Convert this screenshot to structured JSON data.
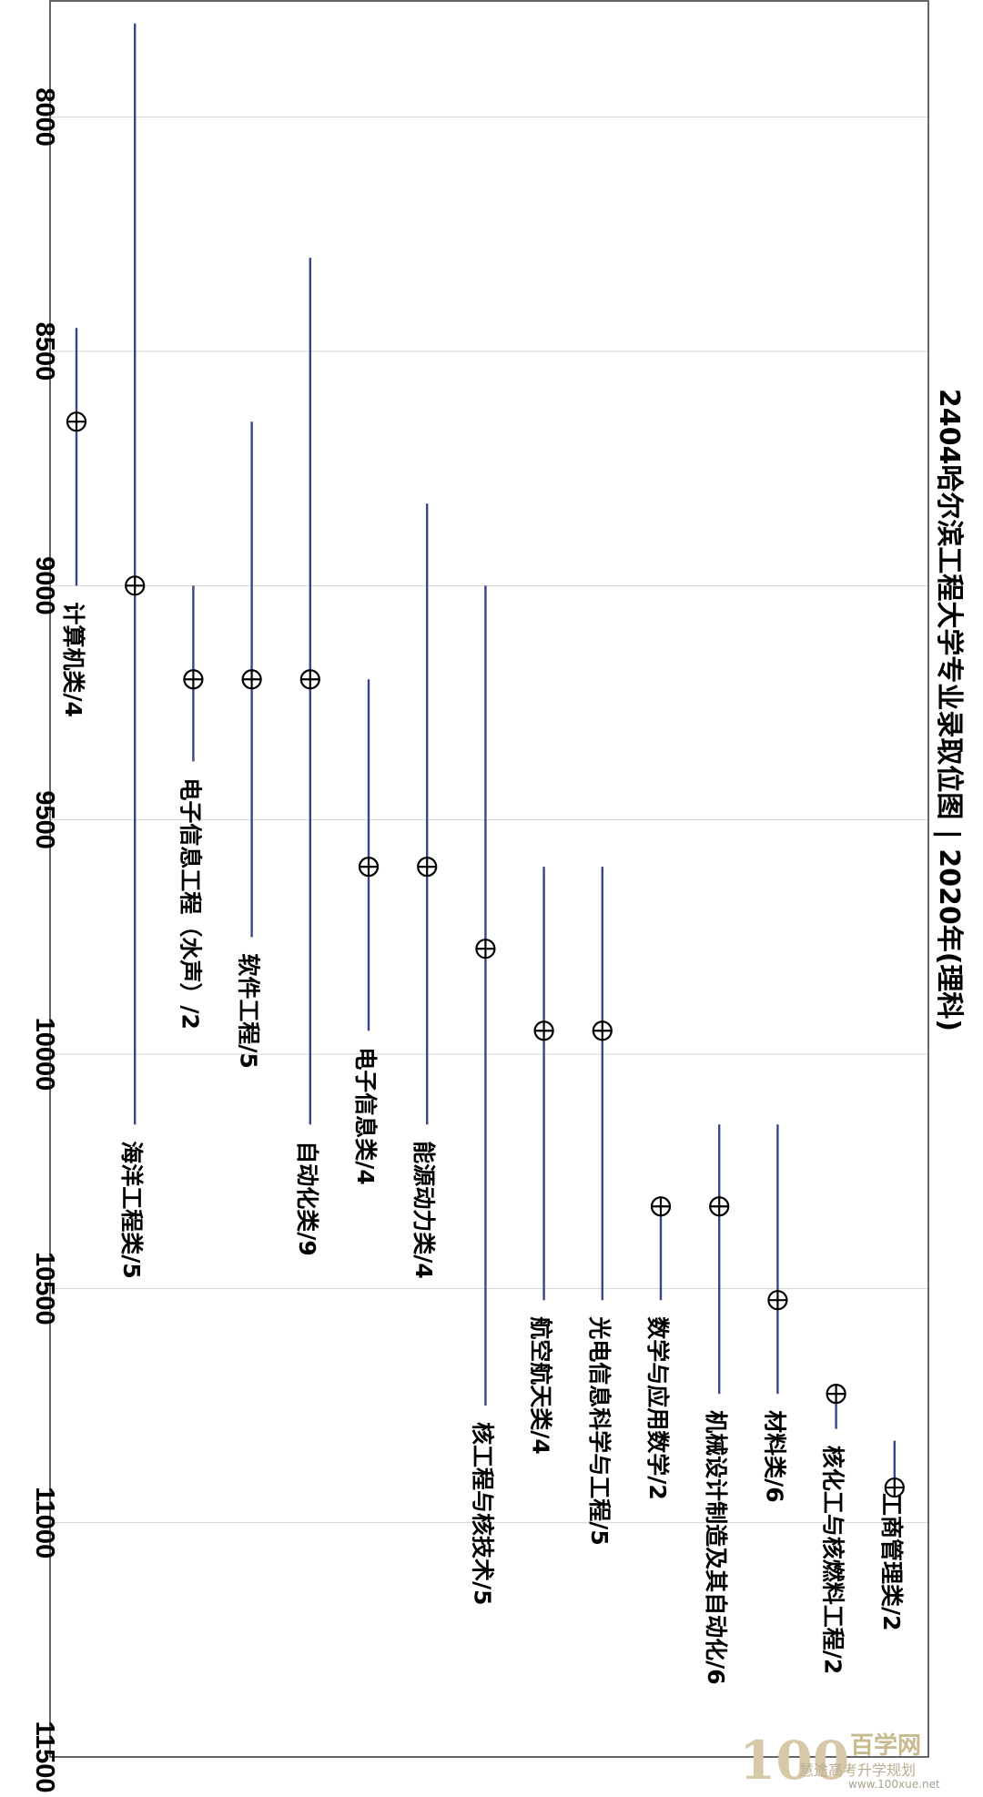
{
  "chart_data": {
    "type": "range",
    "title": "2404哈尔滨工程大学专业录取位图 | 2020年(理科)",
    "ylim": [
      7750,
      11500
    ],
    "y_ticks": [
      "8000",
      "8500",
      "9000",
      "9500",
      "10000",
      "10500",
      "11000",
      "11500"
    ],
    "y_tick_values": [
      8000,
      8500,
      9000,
      9500,
      10000,
      10500,
      11000,
      11500
    ],
    "grid": true,
    "series_colors": {
      "range": "#35468a",
      "marker": "#000000"
    },
    "categories": [
      {
        "label": "计算机类/4",
        "low": 8450,
        "high": 9000,
        "mid": 8650
      },
      {
        "label": "海洋工程类/5",
        "low": 7800,
        "high": 10150,
        "mid": 9000
      },
      {
        "label": "电子信息工程（水声）/2",
        "low": 9000,
        "high": 9375,
        "mid": 9200
      },
      {
        "label": "软件工程/5",
        "low": 8650,
        "high": 9750,
        "mid": 9200
      },
      {
        "label": "自动化类/9",
        "low": 8300,
        "high": 10150,
        "mid": 9200
      },
      {
        "label": "电子信息类/4",
        "low": 9200,
        "high": 9950,
        "mid": 9600
      },
      {
        "label": "能源动力类/4",
        "low": 8825,
        "high": 10150,
        "mid": 9600
      },
      {
        "label": "核工程与核技术/5",
        "low": 9000,
        "high": 10750,
        "mid": 9775
      },
      {
        "label": "航空航天类/4",
        "low": 9600,
        "high": 10525,
        "mid": 9950
      },
      {
        "label": "光电信息科学与工程/5",
        "low": 9600,
        "high": 10525,
        "mid": 9950
      },
      {
        "label": "数学与应用数学/2",
        "low": 10325,
        "high": 10525,
        "mid": 10325
      },
      {
        "label": "机械设计制造及其自动化/6",
        "low": 10150,
        "high": 10725,
        "mid": 10325
      },
      {
        "label": "材料类/6",
        "low": 10150,
        "high": 10725,
        "mid": 10525
      },
      {
        "label": "核化工与核燃料工程/2",
        "low": 10725,
        "high": 10800,
        "mid": 10725
      },
      {
        "label": "工商管理类/2",
        "low": 10825,
        "high": 10925,
        "mid": 10925
      }
    ]
  },
  "watermark": {
    "logo": "100",
    "name": "百学网",
    "account": "慧途高考升学规划",
    "url": "www.100xue.net"
  }
}
